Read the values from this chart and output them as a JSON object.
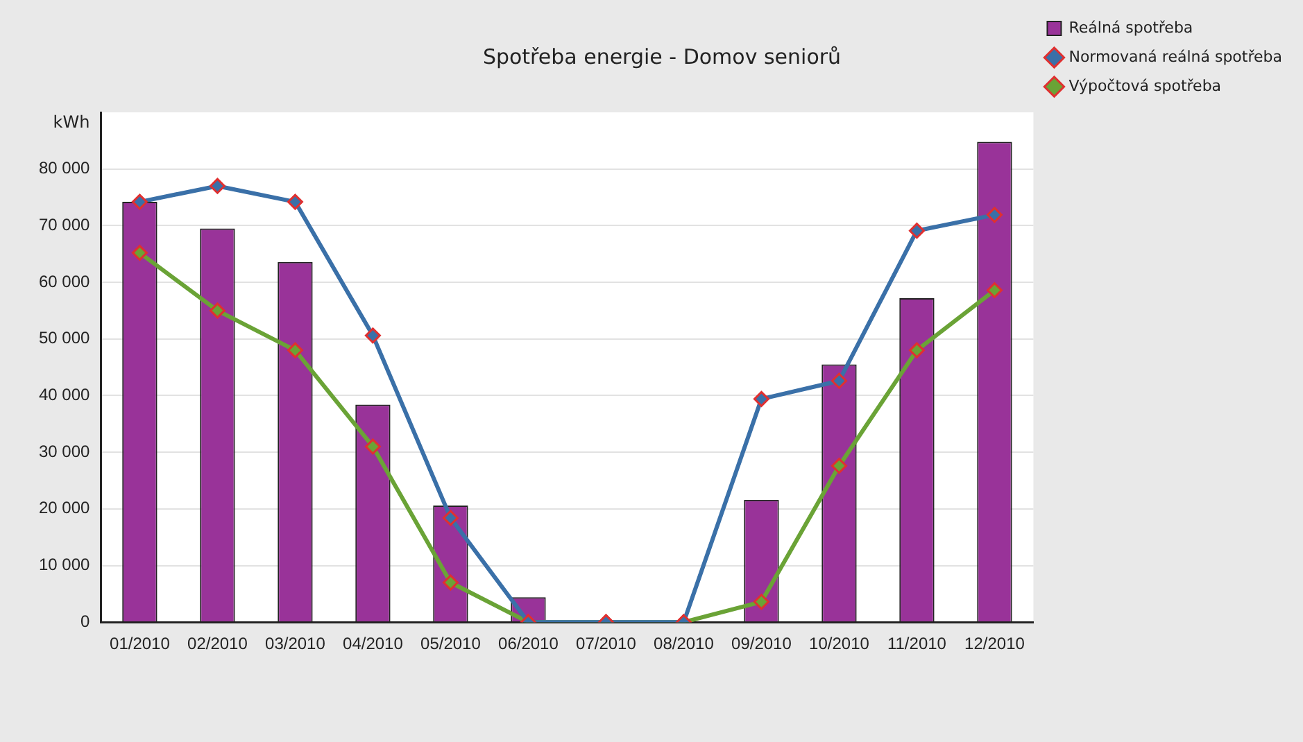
{
  "chart_data": {
    "type": "bar",
    "title": "Spotřeba energie - Domov seniorů",
    "ylabel": "kWh",
    "categories": [
      "01/2010",
      "02/2010",
      "03/2010",
      "04/2010",
      "05/2010",
      "06/2010",
      "07/2010",
      "08/2010",
      "09/2010",
      "10/2010",
      "11/2010",
      "12/2010"
    ],
    "series": [
      {
        "name": "Reálná spotřeba",
        "color": "#993399",
        "values": [
          74200,
          69500,
          63600,
          38400,
          20600,
          4400,
          0,
          0,
          21600,
          45500,
          57200,
          84800
        ]
      },
      {
        "name": "Normovaná reálná spotřeba",
        "type": "line",
        "color": "#3a70a8",
        "values": [
          74200,
          77000,
          74200,
          50600,
          18400,
          0,
          0,
          0,
          39400,
          42600,
          69100,
          71900
        ]
      },
      {
        "name": "Výpočtová spotřeba",
        "type": "line",
        "color": "#6aa336",
        "values": [
          65200,
          55000,
          48000,
          31000,
          7000,
          0,
          0,
          0,
          3600,
          27600,
          48000,
          58600
        ]
      }
    ],
    "ylim": [
      0,
      90000
    ],
    "yticks": [
      0,
      {
        "value": 10000,
        "label": "10 000"
      },
      {
        "value": 20000,
        "label": "20 000"
      },
      {
        "value": 30000,
        "label": "30 000"
      },
      {
        "value": 40000,
        "label": "40 000"
      },
      {
        "value": 50000,
        "label": "50 000"
      },
      {
        "value": 60000,
        "label": "60 000"
      },
      {
        "value": 70000,
        "label": "70 000"
      },
      {
        "value": 80000,
        "label": "80 000"
      }
    ],
    "grid": "y",
    "legend": "top right",
    "marker": "diamond",
    "line_style": "solid"
  }
}
